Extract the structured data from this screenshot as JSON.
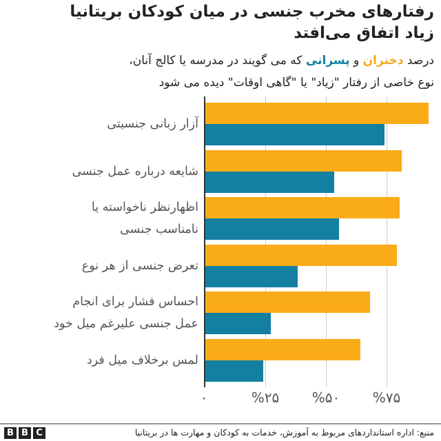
{
  "title_line1": "رفتارهای مخرب جنسی در میان کودکان بریتانیا",
  "title_line2": "زیاد اتفاق می‌افتد",
  "subtitle": {
    "prefix": "درصد ",
    "girls": "دختران",
    "and": " و ",
    "boys": "پسرانی",
    "line1_rest": " که می گویند در مدرسه یا کالج آنان،",
    "line2": "نوع خاصی از رفتار \"زیاد\" یا \"گاهی اوقات\" دیده می شود"
  },
  "colors": {
    "girls": "#faab18",
    "boys": "#1380a1"
  },
  "ticks": [
    "۰",
    "%۲۵",
    "%۵۰",
    "%۷۵"
  ],
  "source": "منبع: اداره استانداردهای مربوط به آموزش، خدمات به کودکان و مهارت ها در بریتانیا",
  "brand": [
    "B",
    "B",
    "C"
  ],
  "chart_data": {
    "type": "bar",
    "orientation": "horizontal",
    "title": "رفتارهای مخرب جنسی در میان کودکان بریتانیا زیاد اتفاق می‌افتد",
    "subtitle": "درصد دختران و پسرانی که می گویند در مدرسه یا کالج آنان، نوع خاصی از رفتار \"زیاد\" یا \"گاهی اوقات\" دیده می شود",
    "categories": [
      "آزار زبانی جنسیتی",
      "شایعه درباره عمل جنسی",
      "اظهارنظر ناخواسته یا نامناسب جنسی",
      "تعرض جنسی از هر نوع",
      "احساس فشار برای انجام عمل جنسی علیرغم میل خود",
      "لمس برخلاف میل فرد"
    ],
    "series": [
      {
        "name": "دختران",
        "color": "#faab18",
        "values": [
          92,
          81,
          80,
          79,
          68,
          64
        ]
      },
      {
        "name": "پسران",
        "color": "#1380a1",
        "values": [
          74,
          53,
          55,
          38,
          27,
          24
        ]
      }
    ],
    "xlabel": "",
    "ylabel": "",
    "xlim": [
      0,
      95
    ],
    "x_ticks": [
      "۰",
      "%۲۵",
      "%۵۰",
      "%۷۵"
    ],
    "grid": true,
    "legend": "inline in subtitle (colored words)",
    "source": "منبع: اداره استانداردهای مربوط به آموزش، خدمات به کودکان و مهارت ها در بریتانیا"
  },
  "labels": {
    "c0": [
      "آزار زبانی جنسیتی"
    ],
    "c1": [
      "شایعه درباره عمل جنسی"
    ],
    "c2": [
      "اظهارنظر ناخواسته یا",
      "نامناسب جنسی"
    ],
    "c3": [
      "تعرض جنسی از هر نوع"
    ],
    "c4": [
      "احساس فشار برای انجام",
      "عمل جنسی علیرغم میل خود"
    ],
    "c5": [
      "لمس برخلاف میل فرد"
    ]
  }
}
